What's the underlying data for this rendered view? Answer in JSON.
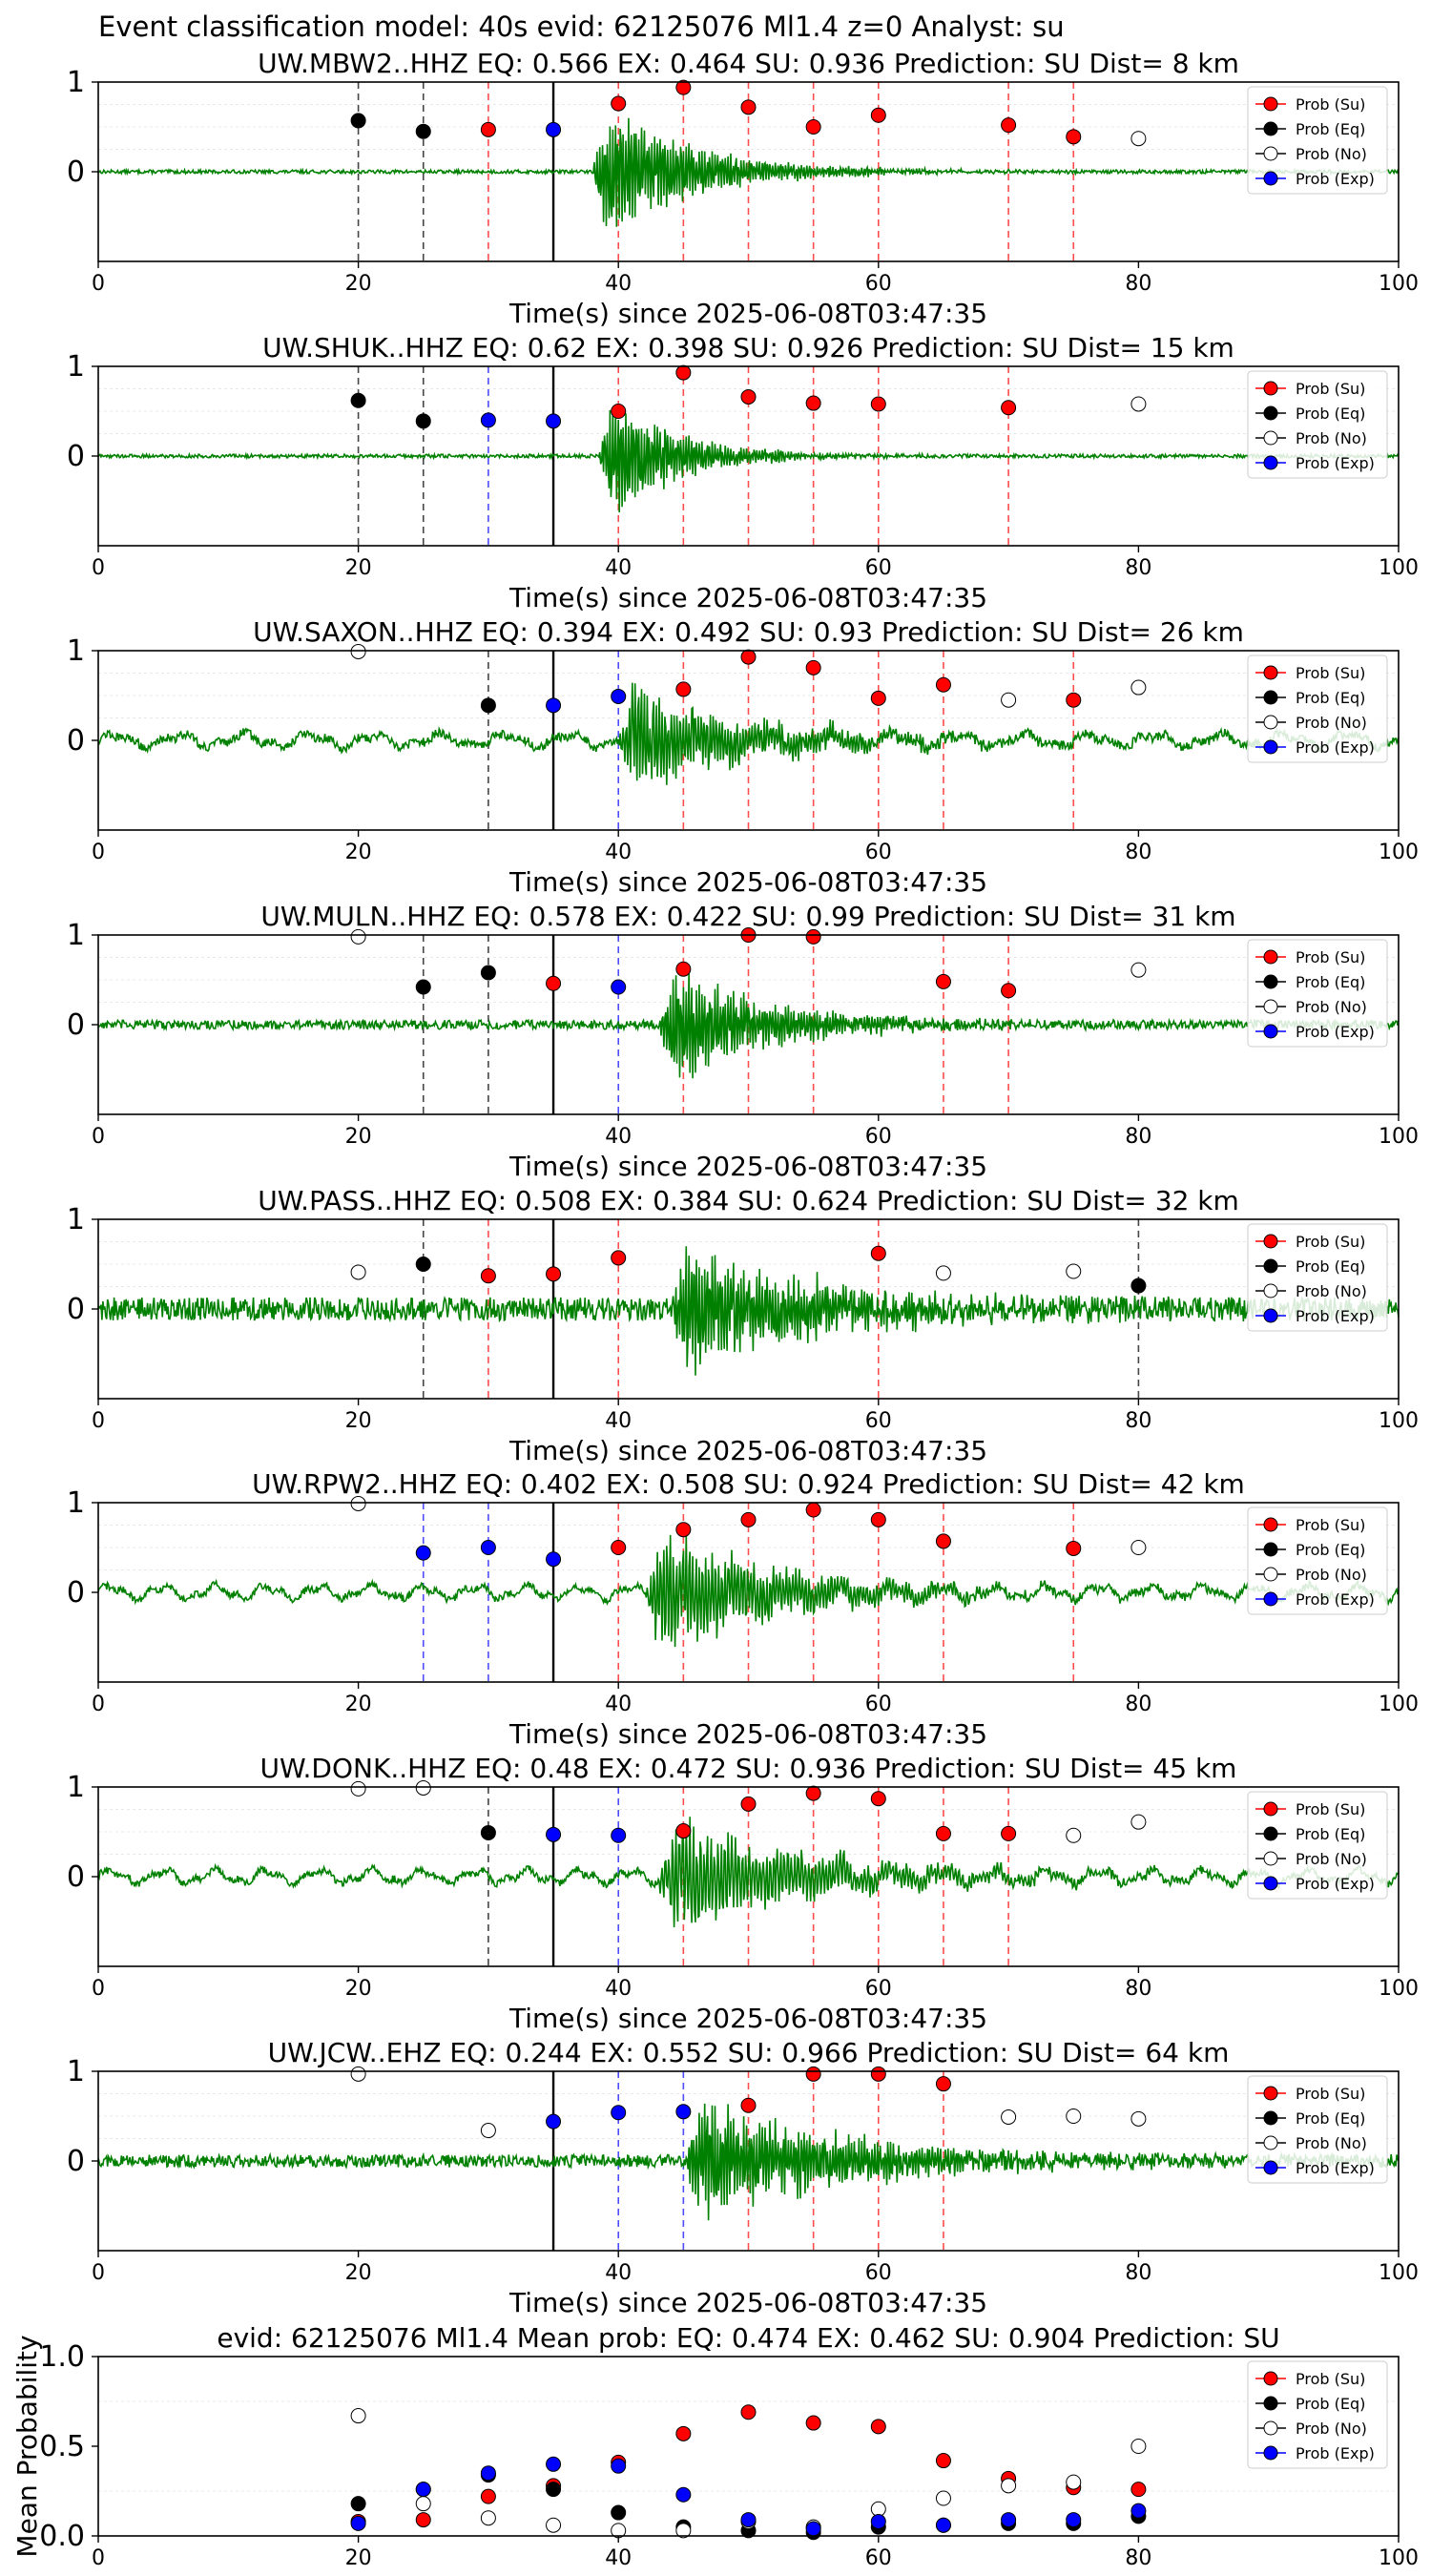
{
  "figure_title": "Event classification model: 40s evid: 62125076 Ml1.4 z=0 Analyst: su",
  "colors": {
    "su": "#ff0000",
    "eq": "#000000",
    "no": "#ffffff",
    "exp": "#0000ff",
    "waveform": "#008000",
    "su_line": "#ff4d4d",
    "eq_line": "#444444",
    "exp_line": "#4d4dff"
  },
  "legend_labels": [
    "Prob (Su)",
    "Prob (Eq)",
    "Prob (No)",
    "Prob (Exp)"
  ],
  "chart_data": [
    {
      "type": "scatter",
      "station": "UW.MBW2..HHZ",
      "title": "UW.MBW2..HHZ   EQ: 0.566  EX: 0.464  SU: 0.936   Prediction: SU    Dist= 8 km",
      "xlabel": "Time(s) since 2025-06-08T03:47:35",
      "xlim": [
        0,
        100
      ],
      "ylim": [
        -1,
        1
      ],
      "xticks": [
        "0",
        "20",
        "40",
        "60",
        "80",
        "100"
      ],
      "yticks": [
        "0",
        "1"
      ],
      "pick_time": 35,
      "points": [
        {
          "t": 20,
          "p": 0.57,
          "cls": "eq"
        },
        {
          "t": 25,
          "p": 0.45,
          "cls": "eq"
        },
        {
          "t": 30,
          "p": 0.47,
          "cls": "su"
        },
        {
          "t": 35,
          "p": 0.47,
          "cls": "exp"
        },
        {
          "t": 40,
          "p": 0.76,
          "cls": "su"
        },
        {
          "t": 45,
          "p": 0.94,
          "cls": "su"
        },
        {
          "t": 50,
          "p": 0.72,
          "cls": "su"
        },
        {
          "t": 55,
          "p": 0.5,
          "cls": "su"
        },
        {
          "t": 60,
          "p": 0.63,
          "cls": "su"
        },
        {
          "t": 70,
          "p": 0.52,
          "cls": "su"
        },
        {
          "t": 75,
          "p": 0.39,
          "cls": "su"
        },
        {
          "t": 80,
          "p": 0.37,
          "cls": "no"
        }
      ],
      "waveform": {
        "onset": 38,
        "amp": 0.95,
        "decay": 7,
        "noise": 0.02,
        "f": 1.6,
        "bg_period": 0
      }
    },
    {
      "type": "scatter",
      "station": "UW.SHUK..HHZ",
      "title": "UW.SHUK..HHZ   EQ: 0.62  EX: 0.398  SU: 0.926   Prediction: SU    Dist= 15 km",
      "xlabel": "Time(s) since 2025-06-08T03:47:35",
      "xlim": [
        0,
        100
      ],
      "ylim": [
        -1,
        1
      ],
      "xticks": [
        "0",
        "20",
        "40",
        "60",
        "80",
        "100"
      ],
      "yticks": [
        "0",
        "1"
      ],
      "pick_time": 35,
      "points": [
        {
          "t": 20,
          "p": 0.62,
          "cls": "eq"
        },
        {
          "t": 25,
          "p": 0.39,
          "cls": "eq"
        },
        {
          "t": 30,
          "p": 0.4,
          "cls": "exp"
        },
        {
          "t": 35,
          "p": 0.39,
          "cls": "exp"
        },
        {
          "t": 40,
          "p": 0.5,
          "cls": "su"
        },
        {
          "t": 45,
          "p": 0.93,
          "cls": "su"
        },
        {
          "t": 50,
          "p": 0.66,
          "cls": "su"
        },
        {
          "t": 55,
          "p": 0.59,
          "cls": "su"
        },
        {
          "t": 60,
          "p": 0.58,
          "cls": "su"
        },
        {
          "t": 70,
          "p": 0.54,
          "cls": "su"
        },
        {
          "t": 80,
          "p": 0.58,
          "cls": "no"
        }
      ],
      "waveform": {
        "onset": 38.5,
        "amp": 1.0,
        "decay": 5,
        "noise": 0.02,
        "f": 1.6,
        "bg_period": 0
      }
    },
    {
      "type": "scatter",
      "station": "UW.SAXON..HHZ",
      "title": "UW.SAXON..HHZ   EQ: 0.394  EX: 0.492  SU: 0.93   Prediction: SU    Dist= 26 km",
      "xlabel": "Time(s) since 2025-06-08T03:47:35",
      "xlim": [
        0,
        100
      ],
      "ylim": [
        -1,
        1
      ],
      "xticks": [
        "0",
        "20",
        "40",
        "60",
        "80",
        "100"
      ],
      "yticks": [
        "0",
        "1"
      ],
      "pick_time": 35,
      "points": [
        {
          "t": 20,
          "p": 0.99,
          "cls": "no"
        },
        {
          "t": 30,
          "p": 0.39,
          "cls": "eq"
        },
        {
          "t": 35,
          "p": 0.39,
          "cls": "exp"
        },
        {
          "t": 40,
          "p": 0.49,
          "cls": "exp"
        },
        {
          "t": 45,
          "p": 0.57,
          "cls": "su"
        },
        {
          "t": 50,
          "p": 0.93,
          "cls": "su"
        },
        {
          "t": 55,
          "p": 0.81,
          "cls": "su"
        },
        {
          "t": 60,
          "p": 0.47,
          "cls": "su"
        },
        {
          "t": 65,
          "p": 0.62,
          "cls": "su"
        },
        {
          "t": 70,
          "p": 0.45,
          "cls": "no"
        },
        {
          "t": 75,
          "p": 0.45,
          "cls": "su"
        },
        {
          "t": 80,
          "p": 0.59,
          "cls": "no"
        }
      ],
      "waveform": {
        "onset": 40,
        "amp": 0.75,
        "decay": 9,
        "noise": 0.05,
        "f": 1.4,
        "bg_period": 5
      }
    },
    {
      "type": "scatter",
      "station": "UW.MULN..HHZ",
      "title": "UW.MULN..HHZ   EQ: 0.578  EX: 0.422  SU: 0.99   Prediction: SU    Dist= 31 km",
      "xlabel": "Time(s) since 2025-06-08T03:47:35",
      "xlim": [
        0,
        100
      ],
      "ylim": [
        -1,
        1
      ],
      "xticks": [
        "0",
        "20",
        "40",
        "60",
        "80",
        "100"
      ],
      "yticks": [
        "0",
        "1"
      ],
      "pick_time": 35,
      "points": [
        {
          "t": 20,
          "p": 0.98,
          "cls": "no"
        },
        {
          "t": 25,
          "p": 0.42,
          "cls": "eq"
        },
        {
          "t": 30,
          "p": 0.58,
          "cls": "eq"
        },
        {
          "t": 35,
          "p": 0.46,
          "cls": "su"
        },
        {
          "t": 40,
          "p": 0.42,
          "cls": "exp"
        },
        {
          "t": 45,
          "p": 0.62,
          "cls": "su"
        },
        {
          "t": 50,
          "p": 1.0,
          "cls": "su"
        },
        {
          "t": 55,
          "p": 0.98,
          "cls": "su"
        },
        {
          "t": 65,
          "p": 0.48,
          "cls": "su"
        },
        {
          "t": 70,
          "p": 0.38,
          "cls": "su"
        },
        {
          "t": 80,
          "p": 0.61,
          "cls": "no"
        }
      ],
      "waveform": {
        "onset": 43,
        "amp": 0.8,
        "decay": 8,
        "noise": 0.05,
        "f": 1.6,
        "bg_period": 0
      }
    },
    {
      "type": "scatter",
      "station": "UW.PASS..HHZ",
      "title": "UW.PASS..HHZ   EQ: 0.508  EX: 0.384  SU: 0.624   Prediction: SU    Dist= 32 km",
      "xlabel": "Time(s) since 2025-06-08T03:47:35",
      "xlim": [
        0,
        100
      ],
      "ylim": [
        -1,
        1
      ],
      "xticks": [
        "0",
        "20",
        "40",
        "60",
        "80",
        "100"
      ],
      "yticks": [
        "0",
        "1"
      ],
      "pick_time": 35,
      "points": [
        {
          "t": 20,
          "p": 0.41,
          "cls": "no"
        },
        {
          "t": 25,
          "p": 0.5,
          "cls": "eq"
        },
        {
          "t": 30,
          "p": 0.37,
          "cls": "su"
        },
        {
          "t": 35,
          "p": 0.39,
          "cls": "su"
        },
        {
          "t": 40,
          "p": 0.57,
          "cls": "su"
        },
        {
          "t": 60,
          "p": 0.62,
          "cls": "su"
        },
        {
          "t": 65,
          "p": 0.4,
          "cls": "no"
        },
        {
          "t": 75,
          "p": 0.42,
          "cls": "no"
        },
        {
          "t": 80,
          "p": 0.26,
          "cls": "eq"
        }
      ],
      "waveform": {
        "onset": 44,
        "amp": 0.85,
        "decay": 11,
        "noise": 0.13,
        "f": 1.6,
        "bg_period": 0
      }
    },
    {
      "type": "scatter",
      "station": "UW.RPW2..HHZ",
      "title": "UW.RPW2..HHZ   EQ: 0.402  EX: 0.508  SU: 0.924   Prediction: SU    Dist= 42 km",
      "xlabel": "Time(s) since 2025-06-08T03:47:35",
      "xlim": [
        0,
        100
      ],
      "ylim": [
        -1,
        1
      ],
      "xticks": [
        "0",
        "20",
        "40",
        "60",
        "80",
        "100"
      ],
      "yticks": [
        "0",
        "1"
      ],
      "pick_time": 35,
      "points": [
        {
          "t": 20,
          "p": 0.99,
          "cls": "no"
        },
        {
          "t": 25,
          "p": 0.44,
          "cls": "exp"
        },
        {
          "t": 30,
          "p": 0.5,
          "cls": "exp"
        },
        {
          "t": 35,
          "p": 0.37,
          "cls": "exp"
        },
        {
          "t": 40,
          "p": 0.5,
          "cls": "su"
        },
        {
          "t": 45,
          "p": 0.7,
          "cls": "su"
        },
        {
          "t": 50,
          "p": 0.81,
          "cls": "su"
        },
        {
          "t": 55,
          "p": 0.92,
          "cls": "su"
        },
        {
          "t": 60,
          "p": 0.81,
          "cls": "su"
        },
        {
          "t": 65,
          "p": 0.57,
          "cls": "su"
        },
        {
          "t": 75,
          "p": 0.49,
          "cls": "su"
        },
        {
          "t": 80,
          "p": 0.5,
          "cls": "no"
        }
      ],
      "waveform": {
        "onset": 42,
        "amp": 0.8,
        "decay": 10,
        "noise": 0.04,
        "f": 1.3,
        "bg_period": 4
      }
    },
    {
      "type": "scatter",
      "station": "UW.DONK..HHZ",
      "title": "UW.DONK..HHZ   EQ: 0.48  EX: 0.472  SU: 0.936   Prediction: SU    Dist= 45 km",
      "xlabel": "Time(s) since 2025-06-08T03:47:35",
      "xlim": [
        0,
        100
      ],
      "ylim": [
        -1,
        1
      ],
      "xticks": [
        "0",
        "20",
        "40",
        "60",
        "80",
        "100"
      ],
      "yticks": [
        "0",
        "1"
      ],
      "pick_time": 35,
      "points": [
        {
          "t": 20,
          "p": 0.98,
          "cls": "no"
        },
        {
          "t": 25,
          "p": 0.99,
          "cls": "no"
        },
        {
          "t": 30,
          "p": 0.49,
          "cls": "eq"
        },
        {
          "t": 35,
          "p": 0.47,
          "cls": "exp"
        },
        {
          "t": 40,
          "p": 0.46,
          "cls": "exp"
        },
        {
          "t": 45,
          "p": 0.51,
          "cls": "su"
        },
        {
          "t": 50,
          "p": 0.81,
          "cls": "su"
        },
        {
          "t": 55,
          "p": 0.93,
          "cls": "su"
        },
        {
          "t": 60,
          "p": 0.87,
          "cls": "su"
        },
        {
          "t": 65,
          "p": 0.48,
          "cls": "su"
        },
        {
          "t": 70,
          "p": 0.48,
          "cls": "su"
        },
        {
          "t": 75,
          "p": 0.46,
          "cls": "no"
        },
        {
          "t": 80,
          "p": 0.61,
          "cls": "no"
        }
      ],
      "waveform": {
        "onset": 43,
        "amp": 0.75,
        "decay": 11,
        "noise": 0.04,
        "f": 1.2,
        "bg_period": 4
      }
    },
    {
      "type": "scatter",
      "station": "UW.JCW..EHZ",
      "title": "UW.JCW..EHZ   EQ: 0.244  EX: 0.552  SU: 0.966   Prediction: SU    Dist= 64 km",
      "xlabel": "Time(s) since 2025-06-08T03:47:35",
      "xlim": [
        0,
        100
      ],
      "ylim": [
        -1,
        1
      ],
      "xticks": [
        "0",
        "20",
        "40",
        "60",
        "80",
        "100"
      ],
      "yticks": [
        "0",
        "1"
      ],
      "pick_time": 35,
      "points": [
        {
          "t": 20,
          "p": 0.97,
          "cls": "no"
        },
        {
          "t": 30,
          "p": 0.34,
          "cls": "no"
        },
        {
          "t": 35,
          "p": 0.44,
          "cls": "exp"
        },
        {
          "t": 40,
          "p": 0.54,
          "cls": "exp"
        },
        {
          "t": 45,
          "p": 0.55,
          "cls": "exp"
        },
        {
          "t": 50,
          "p": 0.62,
          "cls": "su"
        },
        {
          "t": 55,
          "p": 0.97,
          "cls": "su"
        },
        {
          "t": 60,
          "p": 0.97,
          "cls": "su"
        },
        {
          "t": 65,
          "p": 0.86,
          "cls": "su"
        },
        {
          "t": 70,
          "p": 0.49,
          "cls": "no"
        },
        {
          "t": 75,
          "p": 0.5,
          "cls": "no"
        },
        {
          "t": 80,
          "p": 0.47,
          "cls": "no"
        }
      ],
      "waveform": {
        "onset": 45,
        "amp": 0.8,
        "decay": 12,
        "noise": 0.07,
        "f": 1.6,
        "bg_period": 0
      }
    },
    {
      "type": "scatter",
      "title": "evid: 62125076  Ml1.4   Mean prob:    EQ: 0.474  EX: 0.462  SU: 0.904   Prediction: SU",
      "ylabel": "Mean Probability",
      "xlim": [
        0,
        100
      ],
      "ylim": [
        0,
        1
      ],
      "xticks": [
        "0",
        "20",
        "40",
        "60",
        "80",
        "100"
      ],
      "yticks": [
        "0.0",
        "0.5",
        "1.0"
      ],
      "series": {
        "su": [
          [
            20,
            0.08
          ],
          [
            25,
            0.09
          ],
          [
            30,
            0.22
          ],
          [
            35,
            0.28
          ],
          [
            40,
            0.41
          ],
          [
            45,
            0.57
          ],
          [
            50,
            0.69
          ],
          [
            55,
            0.63
          ],
          [
            60,
            0.61
          ],
          [
            65,
            0.42
          ],
          [
            70,
            0.32
          ],
          [
            75,
            0.27
          ],
          [
            80,
            0.26
          ]
        ],
        "eq": [
          [
            20,
            0.18
          ],
          [
            25,
            0.26
          ],
          [
            30,
            0.34
          ],
          [
            35,
            0.26
          ],
          [
            40,
            0.13
          ],
          [
            45,
            0.05
          ],
          [
            50,
            0.03
          ],
          [
            55,
            0.02
          ],
          [
            60,
            0.05
          ],
          [
            65,
            0.06
          ],
          [
            70,
            0.07
          ],
          [
            75,
            0.07
          ],
          [
            80,
            0.11
          ]
        ],
        "no": [
          [
            20,
            0.67
          ],
          [
            25,
            0.18
          ],
          [
            30,
            0.1
          ],
          [
            35,
            0.06
          ],
          [
            40,
            0.03
          ],
          [
            45,
            0.03
          ],
          [
            50,
            0.08
          ],
          [
            55,
            0.05
          ],
          [
            60,
            0.15
          ],
          [
            65,
            0.21
          ],
          [
            70,
            0.28
          ],
          [
            75,
            0.3
          ],
          [
            80,
            0.5
          ]
        ],
        "exp": [
          [
            20,
            0.07
          ],
          [
            25,
            0.26
          ],
          [
            30,
            0.35
          ],
          [
            35,
            0.4
          ],
          [
            40,
            0.39
          ],
          [
            45,
            0.23
          ],
          [
            50,
            0.09
          ],
          [
            55,
            0.04
          ],
          [
            60,
            0.08
          ],
          [
            65,
            0.06
          ],
          [
            70,
            0.09
          ],
          [
            75,
            0.09
          ],
          [
            80,
            0.14
          ]
        ]
      }
    }
  ]
}
